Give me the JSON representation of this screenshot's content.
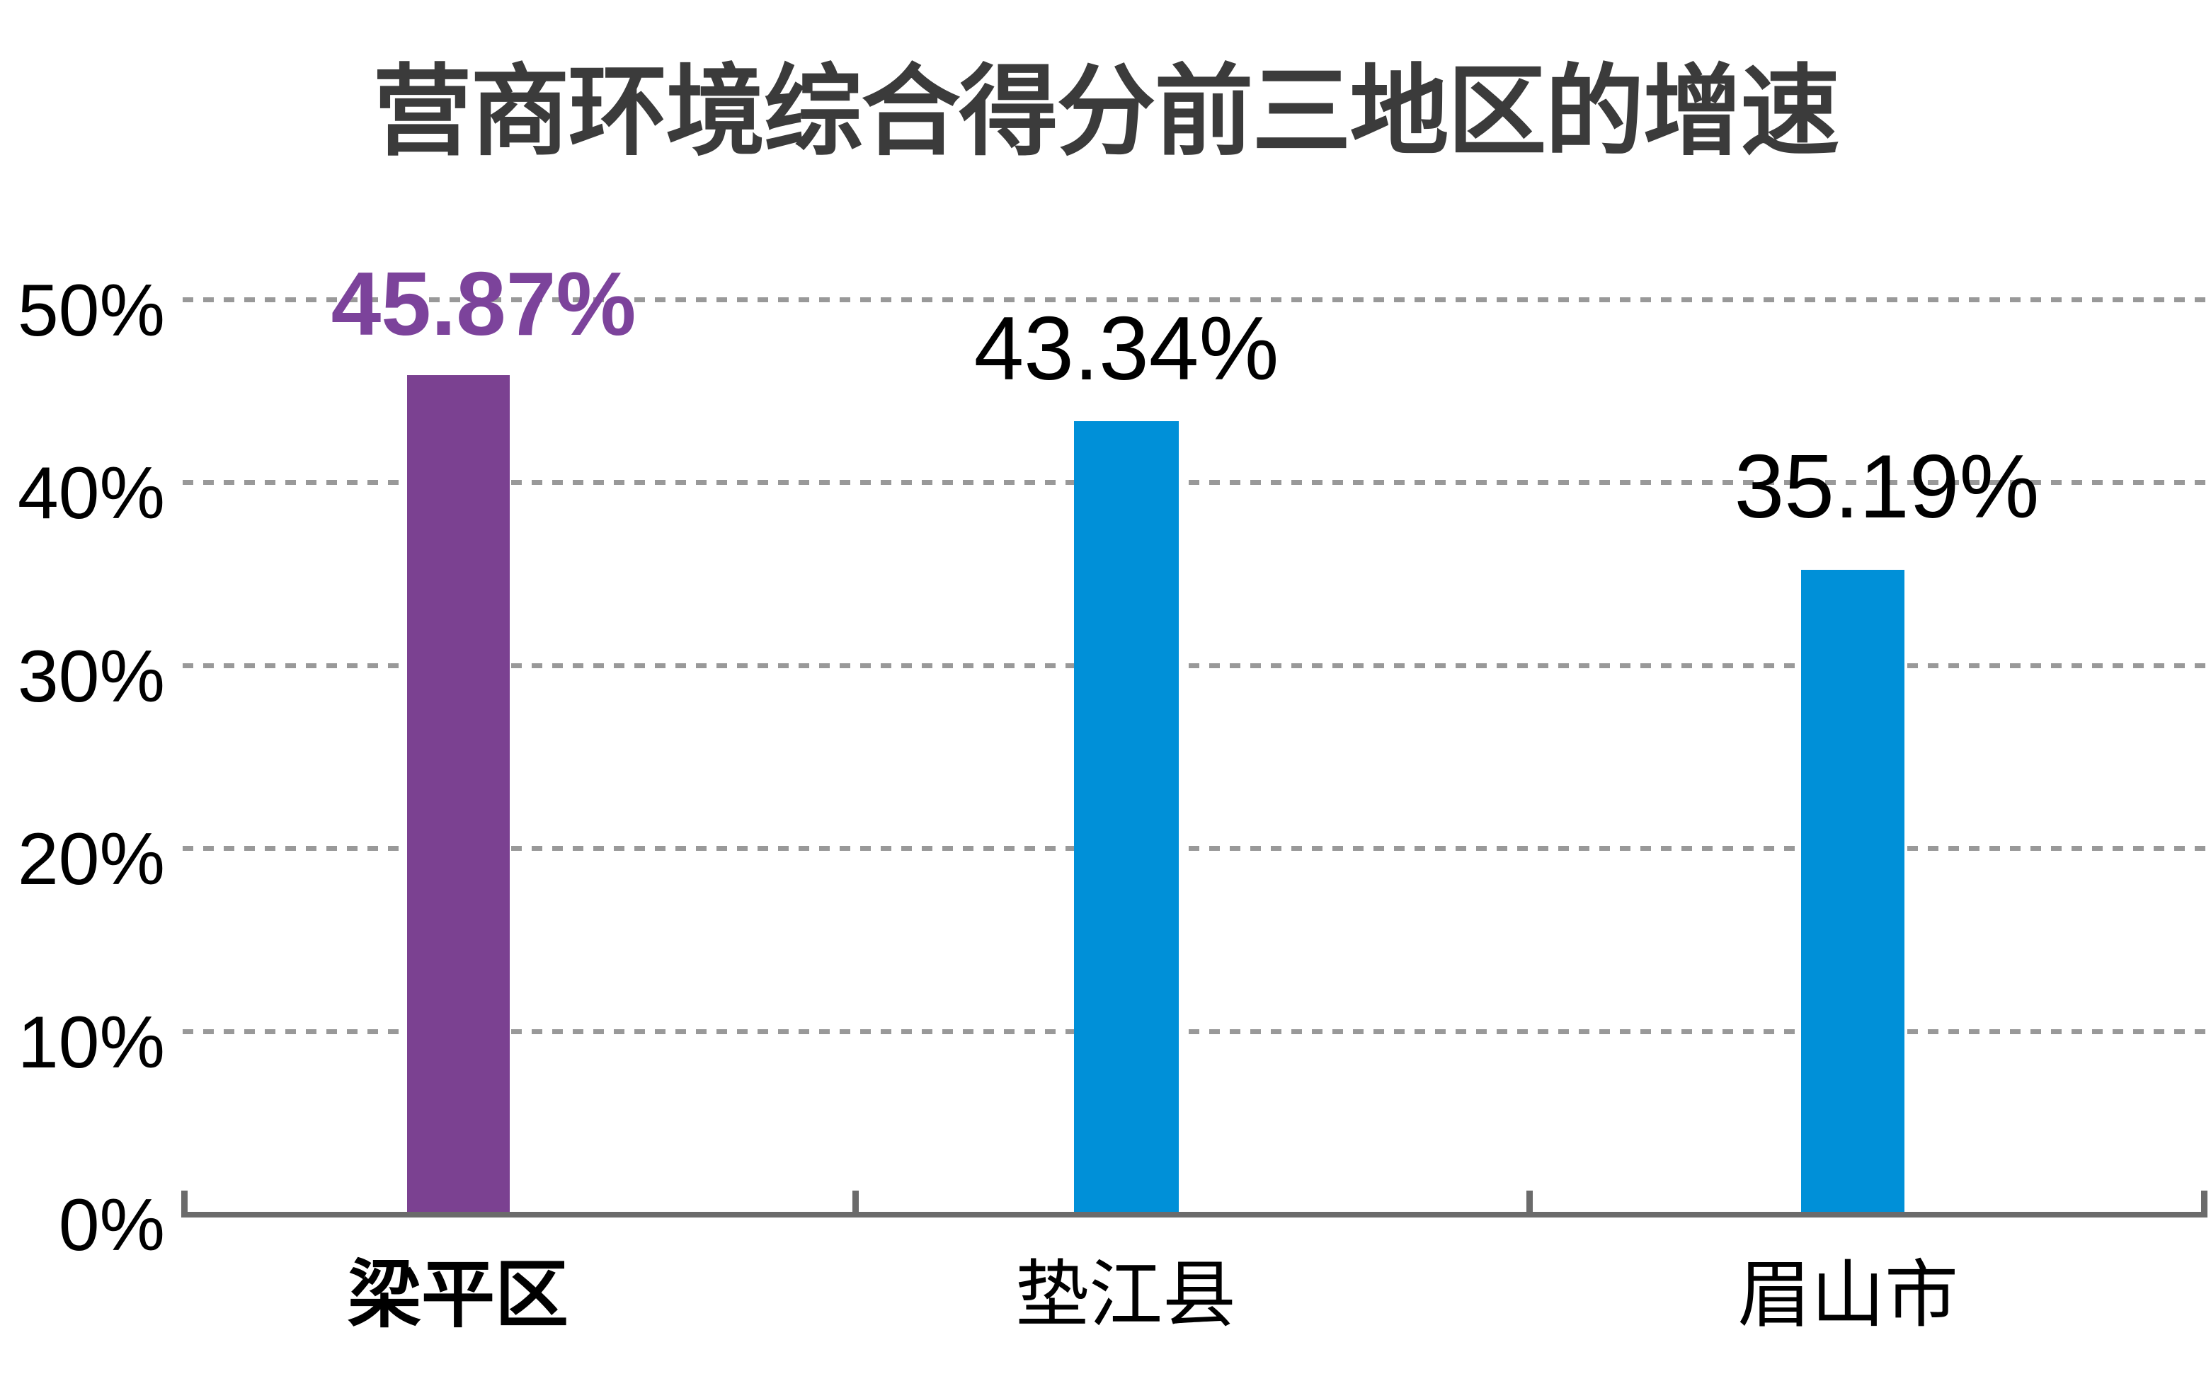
{
  "page": {
    "background": "#FFFFFF"
  },
  "chart_data": {
    "type": "bar",
    "title": "营商环境综合得分前三地区的增速",
    "categories": [
      "梁平区",
      "垫江县",
      "眉山市"
    ],
    "values": [
      45.87,
      43.34,
      35.19
    ],
    "data_labels": [
      "45.87%",
      "43.34%",
      "35.19%"
    ],
    "series": [
      {
        "name": "增速",
        "values": [
          45.87,
          43.34,
          35.19
        ]
      }
    ],
    "highlighted_category": "梁平区",
    "y_axis": {
      "ticks": [
        "50%",
        "40%",
        "30%",
        "20%",
        "10%",
        "0%"
      ],
      "tick_values": [
        50,
        40,
        30,
        20,
        10,
        0
      ],
      "min": 0,
      "max": 50,
      "grid": "dashed horizontal"
    },
    "x_axis": {
      "label": "",
      "tick_marks": "category boundaries, short stubs above baseline"
    },
    "legend": "none",
    "colors": {
      "highlight_bar": "#7B4191",
      "highlight_label": "#7C439B",
      "bar": "#0090D8",
      "title_text": "#3B3B3B",
      "label_text": "#000000",
      "gridline": "#999999",
      "axis_line": "#6B6B6B"
    }
  }
}
